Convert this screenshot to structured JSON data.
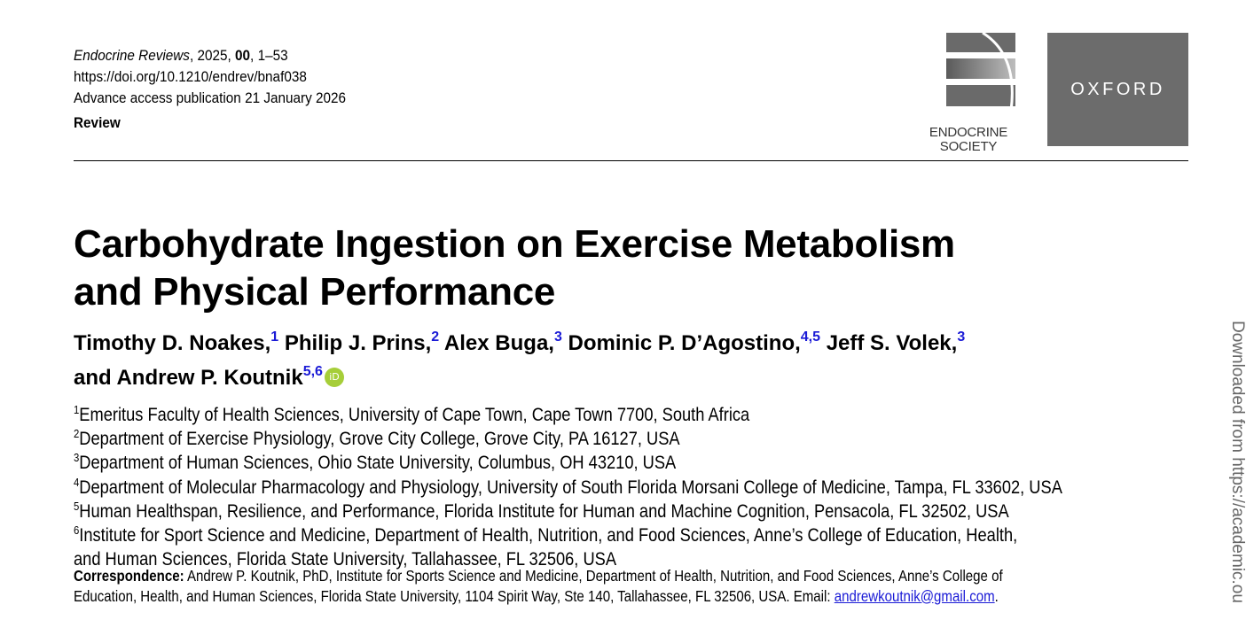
{
  "header": {
    "journal": "Endocrine Reviews",
    "year": "2025",
    "volume": "00",
    "pages": "1–53",
    "doi": "https://doi.org/10.1210/endrev/bnaf038",
    "advance_access": "Advance access publication 21 January 2026",
    "article_type": "Review"
  },
  "logos": {
    "endocrine_society": {
      "line1": "ENDOCRINE",
      "line2": "SOCIETY"
    },
    "oxford": "OXFORD"
  },
  "title": {
    "line1": "Carbohydrate Ingestion on Exercise Metabolism",
    "line2": "and Physical Performance"
  },
  "authors": [
    {
      "name": "Timothy D. Noakes,",
      "affil": "1"
    },
    {
      "name": "Philip J. Prins,",
      "affil": "2"
    },
    {
      "name": "Alex Buga,",
      "affil": "3"
    },
    {
      "name": "Dominic P. D’Agostino,",
      "affil": "4,5"
    },
    {
      "name": "Jeff S. Volek,",
      "affil": "3"
    },
    {
      "name": "and Andrew P. Koutnik",
      "affil": "5,6"
    }
  ],
  "orcid_label": "iD",
  "affiliations": [
    {
      "num": "1",
      "text": "Emeritus Faculty of Health Sciences, University of Cape Town, Cape Town 7700, South Africa"
    },
    {
      "num": "2",
      "text": "Department of Exercise Physiology, Grove City College, Grove City, PA 16127, USA"
    },
    {
      "num": "3",
      "text": "Department of Human Sciences, Ohio State University, Columbus, OH 43210, USA"
    },
    {
      "num": "4",
      "text": "Department of Molecular Pharmacology and Physiology, University of South Florida Morsani College of Medicine, Tampa, FL 33602, USA"
    },
    {
      "num": "5",
      "text": "Human Healthspan, Resilience, and Performance, Florida Institute for Human and Machine Cognition, Pensacola, FL 32502, USA"
    },
    {
      "num": "6",
      "text": "Institute for Sport Science and Medicine, Department of Health, Nutrition, and Food Sciences, Anne’s College of Education, Health,",
      "cont": "and Human Sciences, Florida State University, Tallahassee, FL 32506, USA"
    }
  ],
  "correspondence": {
    "label": "Correspondence:",
    "line1": "Andrew P. Koutnik, PhD, Institute for Sports Science and Medicine, Department of Health, Nutrition, and Food Sciences, Anne’s College of",
    "line2": "Education, Health, and Human Sciences, Florida State University, 1104 Spirit Way, Ste 140, Tallahassee, FL 32506, USA. Email: ",
    "email": "andrewkoutnik@gmail.com",
    "after": "."
  },
  "side_note": "Downloaded from https://academic.ou"
}
